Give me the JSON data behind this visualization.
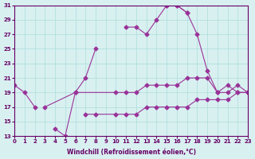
{
  "xlabel": "Windchill (Refroidissement éolien,°C)",
  "ylabel": "",
  "xlim": [
    0,
    23
  ],
  "ylim": [
    13,
    31
  ],
  "yticks": [
    13,
    15,
    17,
    19,
    21,
    23,
    25,
    27,
    29,
    31
  ],
  "xticks": [
    0,
    1,
    2,
    3,
    4,
    5,
    6,
    7,
    8,
    9,
    10,
    11,
    12,
    13,
    14,
    15,
    16,
    17,
    18,
    19,
    20,
    21,
    22,
    23
  ],
  "bg_color": "#d9f0f0",
  "grid_color": "#aadddd",
  "line_color": "#993399",
  "lines": [
    {
      "x": [
        0,
        1,
        2,
        3,
        4,
        5,
        6,
        7,
        8,
        9,
        10,
        11,
        12,
        13,
        14,
        15,
        16,
        17
      ],
      "y": [
        20,
        19,
        17,
        null,
        14,
        13,
        19,
        21,
        25,
        null,
        null,
        28,
        28,
        27,
        29,
        31,
        31,
        30
      ]
    },
    {
      "x": [
        15,
        16,
        17,
        18,
        19,
        20,
        21,
        22,
        23
      ],
      "y": [
        31,
        31,
        30,
        27,
        22,
        19,
        20,
        19,
        19
      ]
    },
    {
      "x": [
        3,
        6,
        10,
        11,
        12,
        13,
        14,
        15,
        16,
        17,
        18,
        19,
        20,
        21,
        22,
        23
      ],
      "y": [
        17,
        19,
        19,
        19,
        19,
        20,
        20,
        20,
        20,
        21,
        21,
        21,
        19,
        19,
        20,
        19
      ]
    },
    {
      "x": [
        7,
        8,
        10,
        11,
        12,
        13,
        14,
        15,
        16,
        17,
        18,
        19,
        20,
        21,
        22,
        23
      ],
      "y": [
        16,
        16,
        16,
        16,
        16,
        17,
        17,
        17,
        17,
        17,
        18,
        18,
        18,
        18,
        19,
        19
      ]
    }
  ]
}
